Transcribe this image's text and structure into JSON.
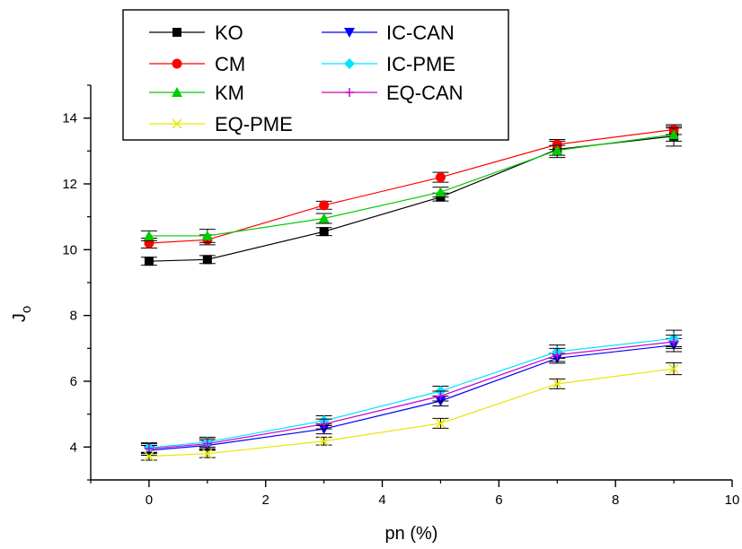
{
  "chart_data": {
    "type": "line",
    "title": "",
    "xlabel": "pn (%)",
    "ylabel_main": "J",
    "ylabel_sub": "o",
    "xlim": [
      -1,
      10
    ],
    "ylim": [
      3,
      15
    ],
    "x_ticks": [
      0,
      2,
      4,
      6,
      8,
      10
    ],
    "y_ticks": [
      4,
      6,
      8,
      10,
      12,
      14
    ],
    "grid": false,
    "legend_position": "top-left",
    "x": [
      0,
      1,
      3,
      5,
      7,
      9
    ],
    "series": [
      {
        "name": "KO",
        "color": "#000000",
        "marker": "square",
        "values": [
          9.65,
          9.7,
          10.55,
          11.6,
          13.05,
          13.45
        ],
        "errors": [
          0.12,
          0.12,
          0.12,
          0.12,
          0.25,
          0.3
        ]
      },
      {
        "name": "CM",
        "color": "#ff0000",
        "marker": "circle",
        "values": [
          10.2,
          10.3,
          11.35,
          12.2,
          13.2,
          13.65
        ],
        "errors": [
          0.15,
          0.15,
          0.12,
          0.15,
          0.15,
          0.15
        ]
      },
      {
        "name": "KM",
        "color": "#00cc00",
        "marker": "triangle-up",
        "values": [
          10.42,
          10.42,
          10.95,
          11.75,
          13.02,
          13.5
        ],
        "errors": [
          0.15,
          0.2,
          0.15,
          0.15,
          0.15,
          0.2
        ]
      },
      {
        "name": "IC-CAN",
        "color": "#0000ff",
        "marker": "triangle-down",
        "values": [
          3.9,
          4.05,
          4.55,
          5.4,
          6.7,
          7.1
        ],
        "errors": [
          0.15,
          0.15,
          0.15,
          0.15,
          0.15,
          0.2
        ]
      },
      {
        "name": "IC-PME",
        "color": "#00e5ff",
        "marker": "diamond",
        "values": [
          3.98,
          4.15,
          4.8,
          5.7,
          6.9,
          7.3
        ],
        "errors": [
          0.15,
          0.15,
          0.15,
          0.15,
          0.2,
          0.25
        ]
      },
      {
        "name": "EQ-CAN",
        "color": "#cc00cc",
        "marker": "plus",
        "values": [
          3.95,
          4.1,
          4.7,
          5.55,
          6.8,
          7.2
        ],
        "errors": [
          0.15,
          0.15,
          0.15,
          0.15,
          0.2,
          0.2
        ]
      },
      {
        "name": "EQ-PME",
        "color": "#e6e600",
        "marker": "x",
        "values": [
          3.72,
          3.8,
          4.18,
          4.72,
          5.92,
          6.38
        ],
        "errors": [
          0.12,
          0.12,
          0.12,
          0.15,
          0.15,
          0.18
        ]
      }
    ]
  }
}
